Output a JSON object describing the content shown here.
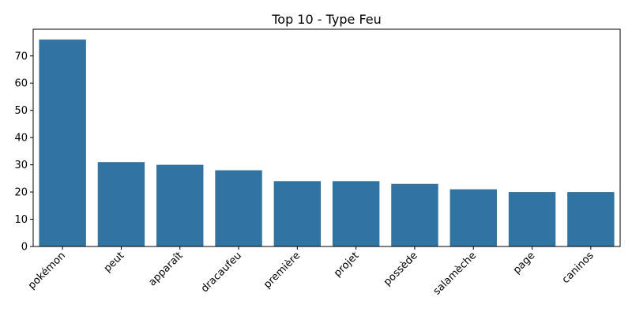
{
  "chart_data": {
    "type": "bar",
    "title": "Top 10 - Type Feu",
    "xlabel": "",
    "ylabel": "",
    "categories": [
      "pokémon",
      "peut",
      "apparaît",
      "dracaufeu",
      "première",
      "projet",
      "possède",
      "salamèche",
      "page",
      "caninos"
    ],
    "values": [
      76,
      31,
      30,
      28,
      24,
      24,
      23,
      21,
      20,
      20
    ],
    "ylim": [
      0,
      80
    ],
    "yticks": [
      0,
      10,
      20,
      30,
      40,
      50,
      60,
      70
    ],
    "grid": false,
    "bar_color": "#3274a1"
  }
}
